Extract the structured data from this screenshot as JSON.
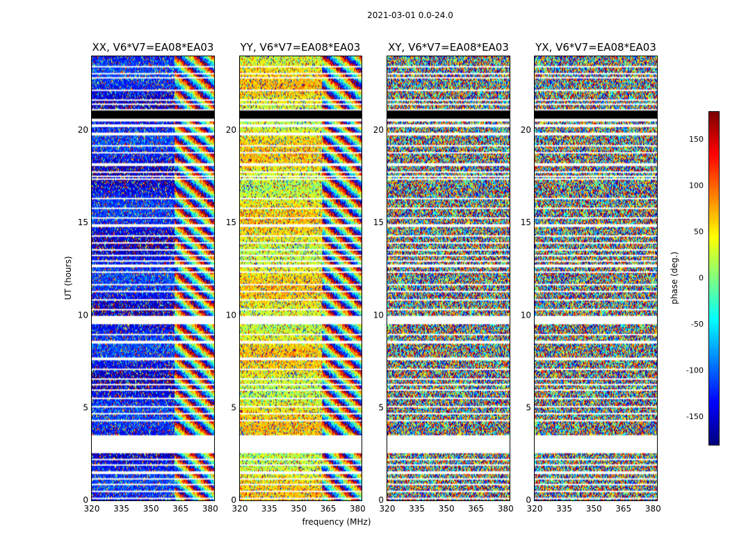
{
  "chart_data": {
    "type": "heatmap",
    "title": "2021-03-01 0.0-24.0",
    "xlabel": "frequency (MHz)",
    "ylabel": "UT (hours)",
    "xlim": [
      320,
      382
    ],
    "ylim": [
      0,
      24
    ],
    "xticks": [
      320,
      335,
      350,
      365,
      380
    ],
    "yticks": [
      0,
      5,
      10,
      15,
      20
    ],
    "panels": [
      {
        "name": "xx",
        "title": "XX, V6*V7=EA08*EA03",
        "coherent_phase_deg": -135,
        "coherent_until_mhz": 362
      },
      {
        "name": "yy",
        "title": "YY, V6*V7=EA08*EA03",
        "coherent_phase_deg": 45,
        "coherent_until_mhz": 362
      },
      {
        "name": "xy",
        "title": "XY, V6*V7=EA08*EA03",
        "coherent_phase_deg": null,
        "coherent_until_mhz": null
      },
      {
        "name": "yx",
        "title": "YX, V6*V7=EA08*EA03",
        "coherent_phase_deg": null,
        "coherent_until_mhz": null
      }
    ],
    "flagged_ut_ranges_hours": [
      [
        0.07,
        0.17
      ],
      [
        0.47,
        0.53
      ],
      [
        0.8,
        0.87
      ],
      [
        1.12,
        1.2
      ],
      [
        1.45,
        1.55
      ],
      [
        1.9,
        1.97
      ],
      [
        2.2,
        2.27
      ],
      [
        2.55,
        3.5
      ],
      [
        4.3,
        4.37
      ],
      [
        4.65,
        4.75
      ],
      [
        5.03,
        5.1
      ],
      [
        5.3,
        5.35
      ],
      [
        5.5,
        5.58
      ],
      [
        5.9,
        5.97
      ],
      [
        6.2,
        6.3
      ],
      [
        6.5,
        6.57
      ],
      [
        7.05,
        7.1
      ],
      [
        7.6,
        7.7
      ],
      [
        8.07,
        8.12
      ],
      [
        8.5,
        8.6
      ],
      [
        8.95,
        9.0
      ],
      [
        9.5,
        9.95
      ],
      [
        10.3,
        10.37
      ],
      [
        10.8,
        10.88
      ],
      [
        11.25,
        11.3
      ],
      [
        11.6,
        11.7
      ],
      [
        12.3,
        12.38
      ],
      [
        12.6,
        12.73
      ],
      [
        12.9,
        13.0
      ],
      [
        13.2,
        13.3
      ],
      [
        13.5,
        13.55
      ],
      [
        13.85,
        13.93
      ],
      [
        14.27,
        14.35
      ],
      [
        14.8,
        14.9
      ],
      [
        15.2,
        15.27
      ],
      [
        15.75,
        15.85
      ],
      [
        16.3,
        16.37
      ],
      [
        16.7,
        16.75
      ],
      [
        17.3,
        17.38
      ],
      [
        17.5,
        17.55
      ],
      [
        17.7,
        17.78
      ],
      [
        18.1,
        18.2
      ],
      [
        18.5,
        18.55
      ],
      [
        18.75,
        18.85
      ],
      [
        19.1,
        19.17
      ],
      [
        19.75,
        19.85
      ],
      [
        20.2,
        20.3
      ],
      [
        20.5,
        20.6
      ],
      [
        21.1,
        21.17
      ],
      [
        21.35,
        21.42
      ],
      [
        21.6,
        21.7
      ],
      [
        22.1,
        22.17
      ],
      [
        22.4,
        22.45
      ],
      [
        22.55,
        22.6
      ],
      [
        22.82,
        22.88
      ],
      [
        23.0,
        23.08
      ],
      [
        23.4,
        23.5
      ]
    ],
    "dead_ut_ranges_hours": [
      [
        20.65,
        21.05
      ]
    ],
    "colorbar": {
      "label": "phase (deg.)",
      "range": [
        -180,
        180
      ],
      "ticks": [
        -150,
        -100,
        -50,
        0,
        50,
        100,
        150
      ],
      "colormap": "jet"
    }
  }
}
